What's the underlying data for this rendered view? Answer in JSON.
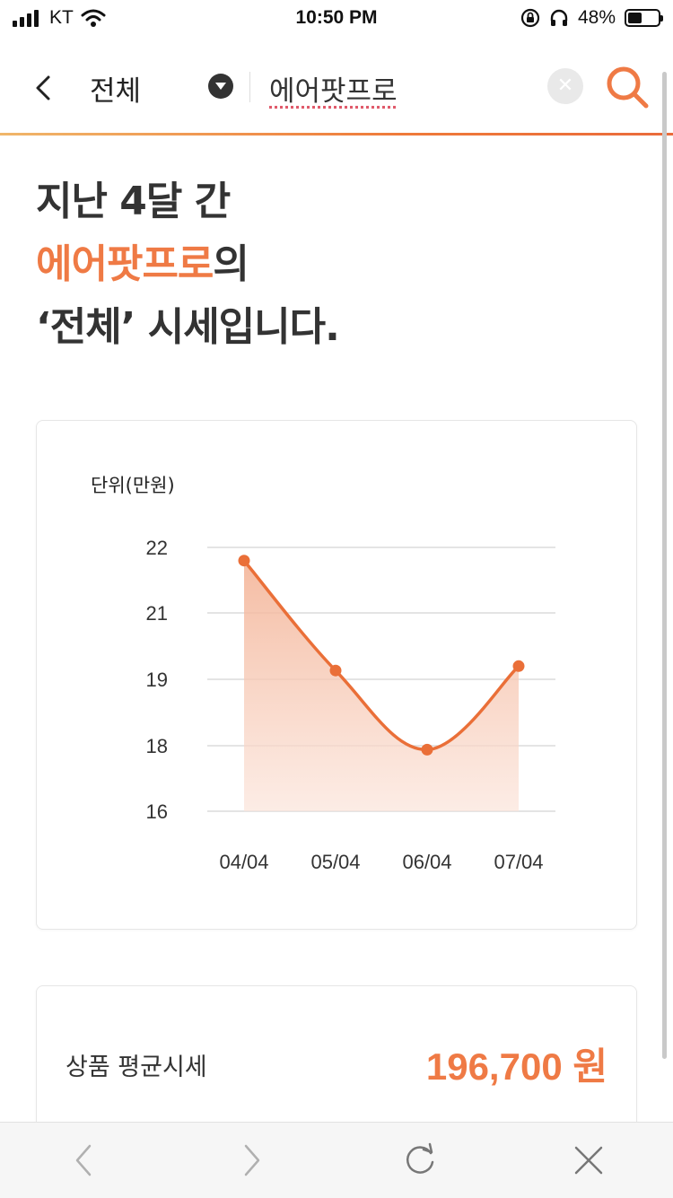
{
  "status_bar": {
    "carrier": "KT",
    "time": "10:50 PM",
    "battery_percent": "48%",
    "battery_level": 0.48
  },
  "header": {
    "category": "전체",
    "search_query": "에어팟프로",
    "icons": {
      "back": "chevron-left-icon",
      "dropdown": "caret-down-icon",
      "clear": "close-icon",
      "search": "search-icon"
    },
    "accent_color": "#ef7a45"
  },
  "headline": {
    "line1": "지난 4달 간",
    "product": "에어팟프로",
    "line2_suffix": "의",
    "line3": "‘전체’ 시세입니다."
  },
  "chart_data": {
    "type": "area",
    "unit_label": "단위(만원)",
    "categories": [
      "04/04",
      "05/04",
      "06/04",
      "07/04"
    ],
    "y_ticks": [
      "22",
      "21",
      "19",
      "18",
      "16"
    ],
    "ylim": [
      16,
      22
    ],
    "series": [
      {
        "values": [
          21.7,
          19.2,
          17.4,
          19.3
        ]
      }
    ],
    "line_color": "#ea6f38",
    "grid": true
  },
  "summary": {
    "label": "상품 평균시세",
    "value": "196,700 원"
  },
  "toolbar": {
    "icons": [
      "chevron-left-icon",
      "chevron-right-icon",
      "refresh-icon",
      "close-icon"
    ]
  }
}
